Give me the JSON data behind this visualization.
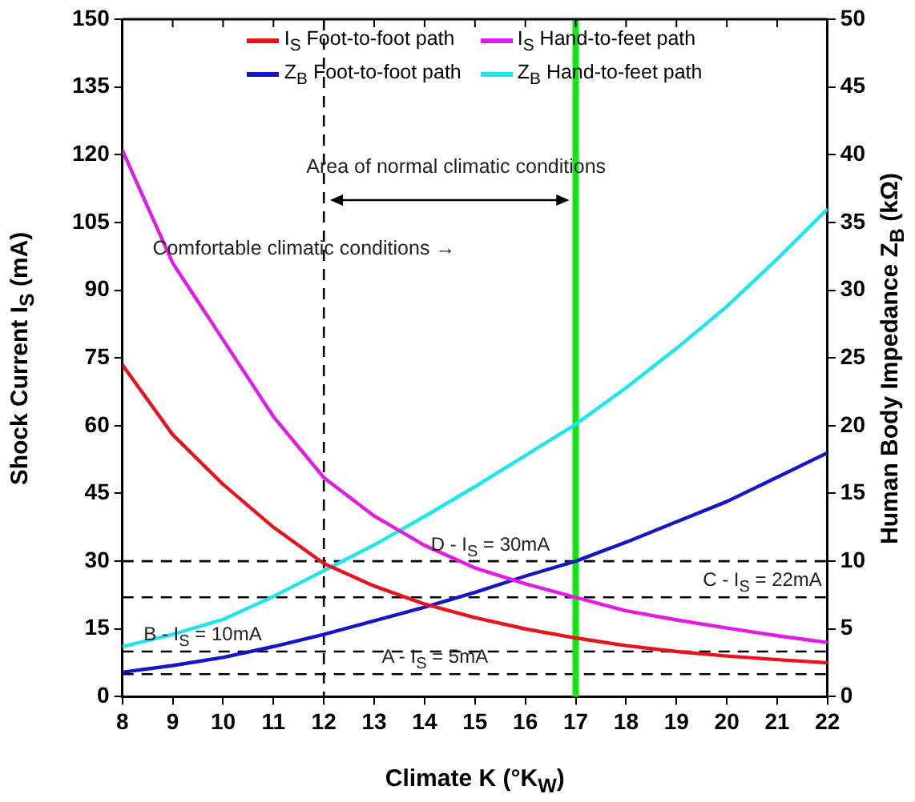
{
  "chart_data": {
    "type": "line",
    "xlabel": "Climate K (°K$_{W}$)",
    "ylabel": "Shock Current I$_{S}$ (mA)",
    "y2label": "Human Body Impedance Z$_{B}$ (kΩ)",
    "x": [
      8,
      9,
      10,
      11,
      12,
      13,
      14,
      15,
      16,
      17,
      18,
      19,
      20,
      21,
      22
    ],
    "series": [
      {
        "name": "I$_{S}$ Foot-to-foot path",
        "color": "#e8141c",
        "values": [
          73.5,
          58,
          47,
          37.5,
          29.5,
          24.5,
          20.5,
          17.5,
          15,
          13,
          11.3,
          10,
          9,
          8.2,
          7.5
        ]
      },
      {
        "name": "I$_{S}$ Hand-to-feet path",
        "color": "#e21ce6",
        "values": [
          121,
          96,
          79,
          62,
          48.5,
          40,
          33.5,
          28.5,
          25,
          22,
          19,
          17,
          15.2,
          13.5,
          12
        ]
      },
      {
        "name": "Z$_{B}$ Foot-to-foot path",
        "color": "#1414c8",
        "axis": "y2",
        "values": [
          1.8,
          2.3,
          2.9,
          3.7,
          4.6,
          5.6,
          6.6,
          7.7,
          8.9,
          10,
          11.4,
          12.9,
          14.4,
          16.2,
          18
        ]
      },
      {
        "name": "Z$_{B}$ Hand-to-feet path",
        "color": "#1ee6ee",
        "axis": "y2",
        "values": [
          3.7,
          4.6,
          5.7,
          7.4,
          9.3,
          11.2,
          13.3,
          15.5,
          17.8,
          20.1,
          22.8,
          25.7,
          28.8,
          32.3,
          36
        ]
      }
    ],
    "xlim": [
      8,
      22
    ],
    "xticks": [
      8,
      9,
      10,
      11,
      12,
      13,
      14,
      15,
      16,
      17,
      18,
      19,
      20,
      21,
      22
    ],
    "ylim": [
      0,
      150
    ],
    "yticks": [
      0,
      15,
      30,
      45,
      60,
      75,
      90,
      105,
      120,
      135,
      150
    ],
    "y2lim": [
      0,
      50
    ],
    "y2ticks": [
      0,
      5,
      10,
      15,
      20,
      25,
      30,
      35,
      40,
      45,
      50
    ],
    "ref_lines": [
      {
        "axis": "y",
        "value": 30,
        "label": "D - I$_{S}$ = 30mA",
        "color": "#000000",
        "line_style": "dashed"
      },
      {
        "axis": "y",
        "value": 22,
        "label": "C - I$_{S}$ = 22mA",
        "color": "#000000",
        "line_style": "dashed"
      },
      {
        "axis": "y",
        "value": 10,
        "label": "B - I$_{S}$ = 10mA",
        "color": "#000000",
        "line_style": "dashed"
      },
      {
        "axis": "y",
        "value": 5,
        "label": "A - I$_{S}$ = 5mA",
        "color": "#000000",
        "line_style": "dashed"
      },
      {
        "axis": "x",
        "value": 12,
        "color": "#000000",
        "line_style": "dashed"
      },
      {
        "axis": "x",
        "value": 17,
        "color": "#14e614",
        "line_style": "solid"
      }
    ],
    "annotations": [
      "Area of normal climatic conditions",
      "Comfortable climatic conditions →"
    ],
    "legend": "top",
    "grid": false,
    "marker": "none",
    "line_style": "solid"
  }
}
